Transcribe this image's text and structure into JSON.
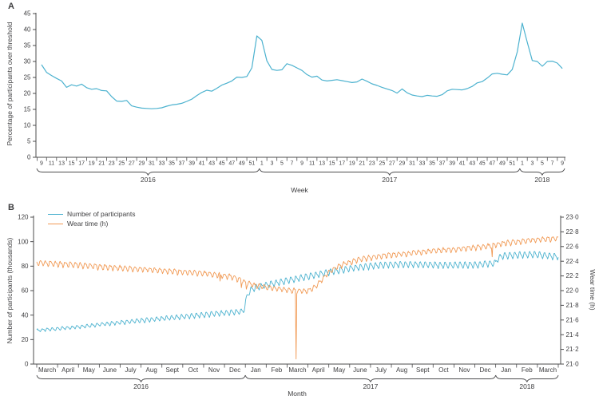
{
  "colors": {
    "line_blue": "#4cb2cf",
    "line_orange": "#f19a55",
    "axis": "#4c4c4e",
    "text": "#3e3e40"
  },
  "chart_data": [
    {
      "panel": "A",
      "type": "line",
      "xlabel": "Week",
      "ylabel": "Percentage of participants over threshold",
      "ylim": [
        0,
        45
      ],
      "yticks": [
        0,
        5,
        10,
        15,
        20,
        25,
        30,
        35,
        40,
        45
      ],
      "x_tick_labels": [
        "9",
        "11",
        "13",
        "15",
        "17",
        "19",
        "21",
        "23",
        "25",
        "27",
        "29",
        "31",
        "33",
        "35",
        "37",
        "39",
        "41",
        "43",
        "45",
        "47",
        "49",
        "51",
        "1",
        "3",
        "5",
        "7",
        "9",
        "11",
        "13",
        "15",
        "17",
        "19",
        "21",
        "23",
        "25",
        "27",
        "29",
        "31",
        "33",
        "35",
        "37",
        "39",
        "41",
        "43",
        "45",
        "47",
        "49",
        "51",
        "1",
        "3",
        "5",
        "7",
        "9"
      ],
      "year_groups": [
        {
          "label": "2016",
          "n_weeks": 44,
          "weeks": "9-52"
        },
        {
          "label": "2017",
          "n_weeks": 52,
          "weeks": "1-52"
        },
        {
          "label": "2018",
          "n_weeks": 9,
          "weeks": "1-9"
        }
      ],
      "series": [
        {
          "name": "Percentage of participants over threshold",
          "color_key": "line_blue",
          "weekly_values": [
            29.0,
            26.6,
            25.6,
            24.7,
            23.9,
            21.9,
            22.7,
            22.3,
            22.9,
            21.8,
            21.3,
            21.5,
            20.9,
            20.8,
            19.0,
            17.6,
            17.5,
            17.8,
            16.1,
            15.7,
            15.4,
            15.3,
            15.2,
            15.3,
            15.5,
            16.0,
            16.4,
            16.6,
            16.9,
            17.5,
            18.2,
            19.3,
            20.3,
            21.0,
            20.7,
            21.6,
            22.6,
            23.2,
            23.9,
            25.1,
            25.0,
            25.3,
            28.0,
            38.0,
            36.6,
            30.2,
            27.5,
            27.2,
            27.4,
            29.3,
            28.8,
            28.0,
            27.2,
            25.9,
            25.1,
            25.4,
            24.2,
            23.9,
            24.1,
            24.3,
            24.0,
            23.7,
            23.4,
            23.6,
            24.5,
            23.8,
            23.0,
            22.5,
            21.9,
            21.4,
            20.9,
            20.1,
            21.4,
            20.2,
            19.5,
            19.2,
            19.0,
            19.4,
            19.2,
            19.1,
            19.6,
            20.8,
            21.3,
            21.2,
            21.1,
            21.5,
            22.2,
            23.3,
            23.7,
            24.8,
            26.1,
            26.3,
            26.0,
            25.8,
            27.5,
            33.0,
            42.0,
            36.0,
            30.3,
            30.0,
            28.5,
            30.0,
            30.1,
            29.5,
            27.8
          ]
        }
      ]
    },
    {
      "panel": "B",
      "type": "line",
      "xlabel": "Month",
      "ylabel_left": "Number of participants (thousands)",
      "ylabel_right": "Wear time (h)",
      "ylim_left": [
        0,
        120
      ],
      "yticks_left": [
        0,
        20,
        40,
        60,
        80,
        100,
        120
      ],
      "ylim_right": [
        21.0,
        23.0
      ],
      "yticks_right": [
        "21·0",
        "21·2",
        "21·4",
        "21·6",
        "21·8",
        "22·0",
        "22·2",
        "22·4",
        "22·6",
        "22·8",
        "23·0"
      ],
      "x_tick_labels": [
        "March",
        "April",
        "May",
        "June",
        "July",
        "Aug",
        "Sept",
        "Oct",
        "Nov",
        "Dec",
        "Jan",
        "Feb",
        "March",
        "April",
        "May",
        "June",
        "July",
        "Aug",
        "Sept",
        "Oct",
        "Nov",
        "Dec",
        "Jan",
        "Feb",
        "March"
      ],
      "year_groups": [
        {
          "label": "2016",
          "n_months": 10
        },
        {
          "label": "2017",
          "n_months": 12
        },
        {
          "label": "2018",
          "n_months": 3
        }
      ],
      "legend": [
        {
          "label": "Number of participants",
          "color_key": "line_blue"
        },
        {
          "label": "Wear time (h)",
          "color_key": "line_orange"
        }
      ],
      "series": [
        {
          "name": "Number of participants",
          "axis": "left",
          "color_key": "line_blue",
          "unit": "thousands",
          "weekly_oscillation": {
            "period_days": 7,
            "amplitude_start": 1.0,
            "amplitude_end": 2.3
          },
          "trend_anchors_weekly": [
            [
              0,
              27.5
            ],
            [
              6,
              29.5
            ],
            [
              13,
              32.5
            ],
            [
              20,
              35.2
            ],
            [
              26,
              37.5
            ],
            [
              31,
              39.3
            ],
            [
              36,
              41.2
            ],
            [
              40,
              42.6
            ],
            [
              41.6,
              43.2
            ],
            [
              42.3,
              56.0
            ],
            [
              43,
              60.5
            ],
            [
              44,
              62.5
            ],
            [
              46,
              64.5
            ],
            [
              48,
              66.0
            ],
            [
              50,
              68.0
            ],
            [
              52,
              69.5
            ],
            [
              55,
              72.0
            ],
            [
              58,
              74.5
            ],
            [
              61,
              76.8
            ],
            [
              63,
              78.0
            ],
            [
              65,
              79.2
            ],
            [
              67,
              80.0
            ],
            [
              70,
              81.0
            ],
            [
              73,
              81.4
            ],
            [
              76,
              81.5
            ],
            [
              80,
              81.0
            ],
            [
              84,
              80.8
            ],
            [
              87,
              81.0
            ],
            [
              89,
              81.4
            ],
            [
              91,
              82.0
            ],
            [
              92.2,
              82.6
            ],
            [
              92.6,
              85.5
            ],
            [
              93.4,
              88.0
            ],
            [
              95,
              88.8
            ],
            [
              97,
              89.2
            ],
            [
              99,
              89.4
            ],
            [
              100,
              89.5
            ],
            [
              101.5,
              89.0
            ],
            [
              103,
              88.4
            ],
            [
              104,
              88.0
            ]
          ],
          "spikes": []
        },
        {
          "name": "Wear time (h)",
          "axis": "right",
          "color_key": "line_orange",
          "unit": "hours",
          "weekly_oscillation": {
            "period_days": 7,
            "amplitude_start": 0.034,
            "amplitude_end": 0.03
          },
          "trend_anchors_weekly": [
            [
              0,
              22.38
            ],
            [
              8,
              22.35
            ],
            [
              16,
              22.31
            ],
            [
              24,
              22.28
            ],
            [
              30,
              22.25
            ],
            [
              34,
              22.23
            ],
            [
              37,
              22.21
            ],
            [
              39,
              22.19
            ],
            [
              41,
              22.15
            ],
            [
              42,
              22.11
            ],
            [
              44,
              22.07
            ],
            [
              46,
              22.05
            ],
            [
              48,
              22.03
            ],
            [
              50,
              22.01
            ],
            [
              52,
              22.0
            ],
            [
              54,
              21.99
            ],
            [
              55,
              22.01
            ],
            [
              56,
              22.05
            ],
            [
              57,
              22.12
            ],
            [
              58,
              22.2
            ],
            [
              59,
              22.26
            ],
            [
              60,
              22.31
            ],
            [
              62,
              22.37
            ],
            [
              64,
              22.41
            ],
            [
              66,
              22.44
            ],
            [
              69,
              22.47
            ],
            [
              72,
              22.49
            ],
            [
              75,
              22.51
            ],
            [
              78,
              22.53
            ],
            [
              81,
              22.55
            ],
            [
              84,
              22.56
            ],
            [
              87,
              22.58
            ],
            [
              90,
              22.6
            ],
            [
              92,
              22.62
            ],
            [
              94,
              22.65
            ],
            [
              96,
              22.66
            ],
            [
              98,
              22.68
            ],
            [
              100,
              22.69
            ],
            [
              102,
              22.7
            ],
            [
              104,
              22.71
            ]
          ],
          "spikes": [
            {
              "day": 258,
              "value": 22.13
            },
            {
              "day": 288,
              "value": 22.04
            },
            {
              "day": 295,
              "value": 22.02
            },
            {
              "day": 365,
              "value": 21.07
            },
            {
              "day": 641,
              "value": 22.46
            }
          ]
        }
      ]
    }
  ]
}
